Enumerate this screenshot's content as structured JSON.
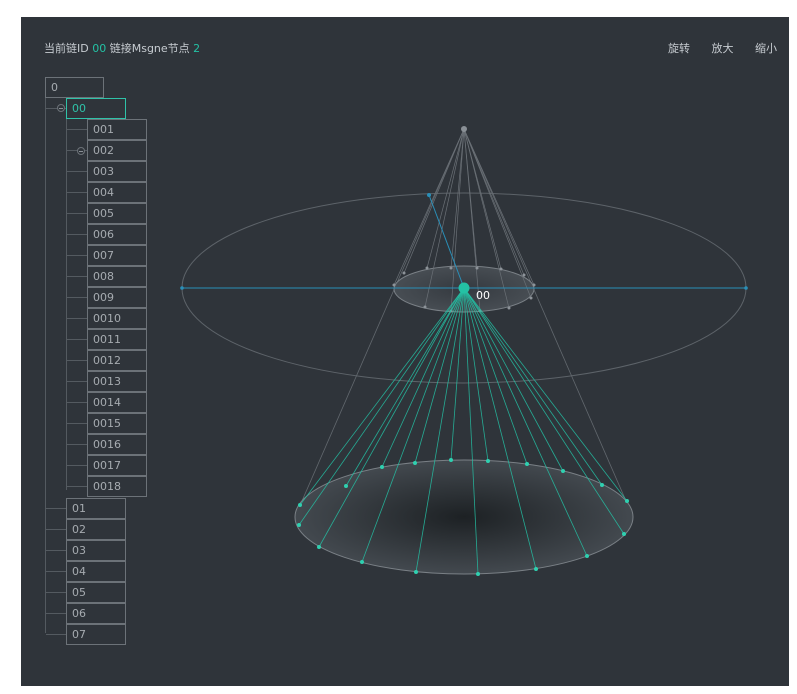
{
  "info": {
    "chain_label": "当前链ID",
    "chain_id": "00",
    "msg_label": "链接Msgne节点",
    "msg_count": "2"
  },
  "toolbar": {
    "rotate": "旋转",
    "zoom_in": "放大",
    "zoom_out": "缩小"
  },
  "tree": {
    "root": "0",
    "selected": "00",
    "children_of_00": [
      "001",
      "002",
      "003",
      "004",
      "005",
      "006",
      "007",
      "008",
      "009",
      "0010",
      "0011",
      "0012",
      "0013",
      "0014",
      "0015",
      "0016",
      "0017",
      "0018"
    ],
    "siblings": [
      "01",
      "02",
      "03",
      "04",
      "05",
      "06",
      "07"
    ]
  },
  "graph": {
    "center_label": "00"
  },
  "colors": {
    "background": "#2f343a",
    "accent": "#24c1a4",
    "blue_line": "#2a8fb8",
    "text": "#c7ccd1"
  }
}
